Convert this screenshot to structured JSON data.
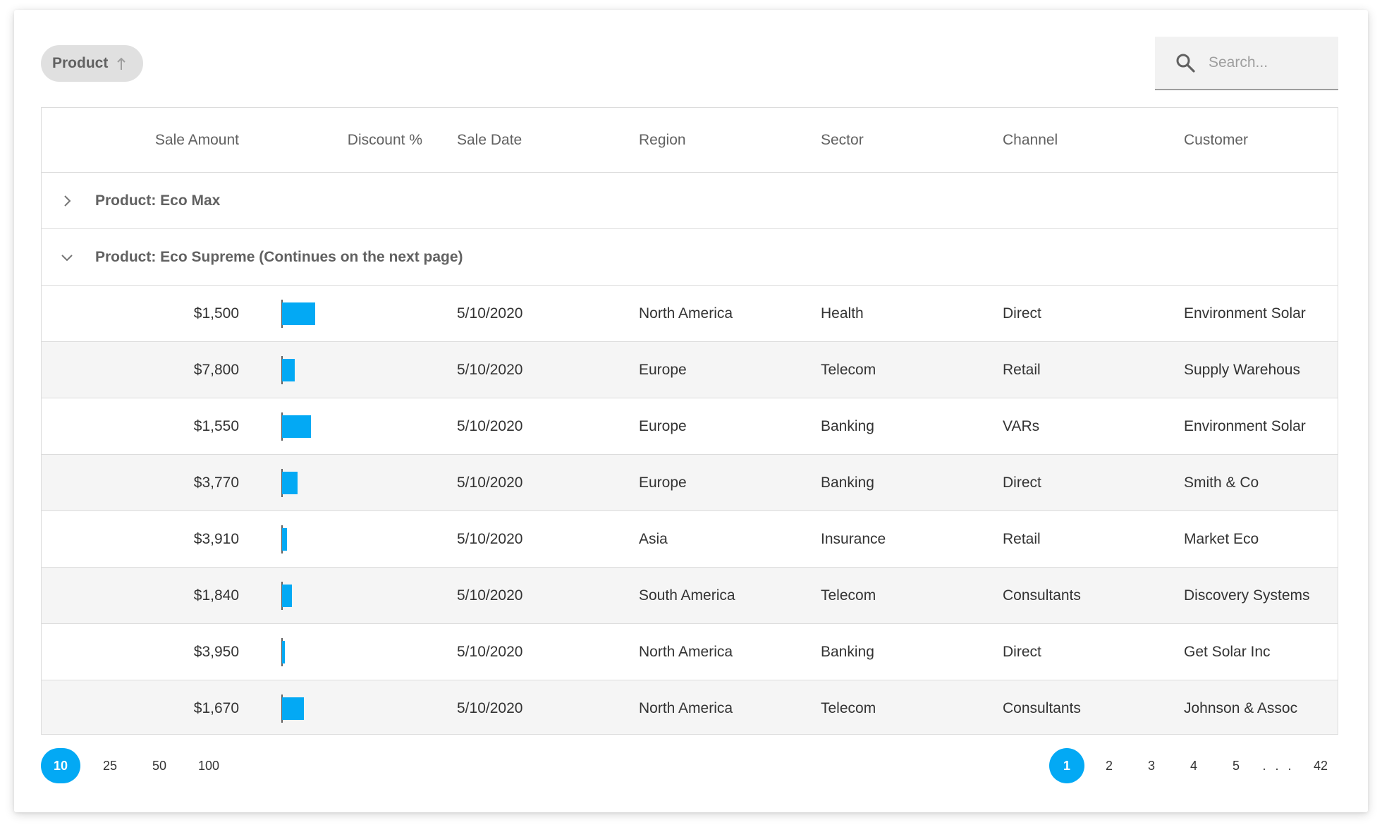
{
  "group_panel": {
    "chip_label": "Product",
    "chip_icon": "arrow-up-icon"
  },
  "search": {
    "placeholder": "Search...",
    "value": "",
    "icon": "search-icon"
  },
  "columns": [
    "Sale Amount",
    "Discount %",
    "Sale Date",
    "Region",
    "Sector",
    "Channel",
    "Customer"
  ],
  "groups": [
    {
      "label": "Product: Eco Max",
      "expanded": false
    },
    {
      "label": "Product: Eco Supreme (Continues on the next page)",
      "expanded": true
    }
  ],
  "rows": [
    {
      "amount": "$1,500",
      "discount": 0.26,
      "date": "5/10/2020",
      "region": "North America",
      "sector": "Health",
      "channel": "Direct",
      "customer": "Environment Solar"
    },
    {
      "amount": "$7,800",
      "discount": 0.1,
      "date": "5/10/2020",
      "region": "Europe",
      "sector": "Telecom",
      "channel": "Retail",
      "customer": "Supply Warehous"
    },
    {
      "amount": "$1,550",
      "discount": 0.23,
      "date": "5/10/2020",
      "region": "Europe",
      "sector": "Banking",
      "channel": "VARs",
      "customer": "Environment Solar"
    },
    {
      "amount": "$3,770",
      "discount": 0.12,
      "date": "5/10/2020",
      "region": "Europe",
      "sector": "Banking",
      "channel": "Direct",
      "customer": "Smith & Co"
    },
    {
      "amount": "$3,910",
      "discount": 0.04,
      "date": "5/10/2020",
      "region": "Asia",
      "sector": "Insurance",
      "channel": "Retail",
      "customer": "Market Eco"
    },
    {
      "amount": "$1,840",
      "discount": 0.08,
      "date": "5/10/2020",
      "region": "South America",
      "sector": "Telecom",
      "channel": "Consultants",
      "customer": "Discovery Systems"
    },
    {
      "amount": "$3,950",
      "discount": 0.02,
      "date": "5/10/2020",
      "region": "North America",
      "sector": "Banking",
      "channel": "Direct",
      "customer": "Get Solar Inc"
    },
    {
      "amount": "$1,670",
      "discount": 0.17,
      "date": "5/10/2020",
      "region": "North America",
      "sector": "Telecom",
      "channel": "Consultants",
      "customer": "Johnson & Assoc"
    }
  ],
  "pager": {
    "page_sizes": [
      "10",
      "25",
      "50",
      "100"
    ],
    "selected_size": "10",
    "pages": [
      "1",
      "2",
      "3",
      "4",
      "5"
    ],
    "ellipsis": ". . .",
    "last_page": "42",
    "current_page": "1"
  },
  "colors": {
    "accent": "#03a9f4",
    "alt_row": "#f5f5f5",
    "border": "#dcdcdc"
  }
}
